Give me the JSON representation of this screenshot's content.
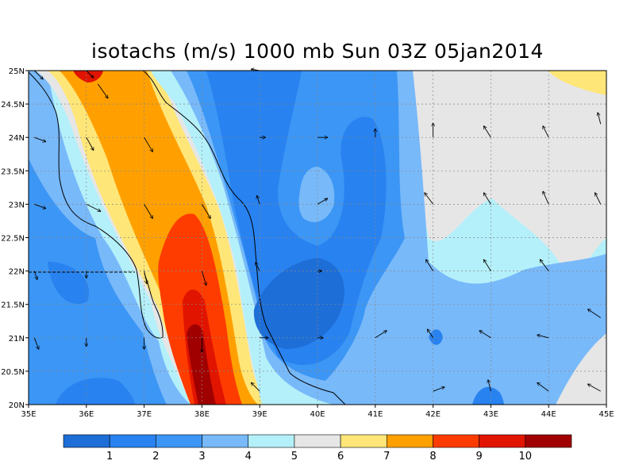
{
  "title": "isotachs (m/s) 1000 mb Sun 03Z 05jan2014",
  "map": {
    "lon_range": [
      35,
      45
    ],
    "lat_range": [
      20,
      25
    ],
    "x_ticks": [
      "35E",
      "36E",
      "37E",
      "38E",
      "39E",
      "40E",
      "41E",
      "42E",
      "43E",
      "44E",
      "45E"
    ],
    "y_ticks": [
      "20N",
      "20.5N",
      "21N",
      "21.5N",
      "22N",
      "22.5N",
      "23N",
      "23.5N",
      "24N",
      "24.5N",
      "25N"
    ],
    "grid": true
  },
  "colorbar": {
    "levels": [
      "1",
      "2",
      "3",
      "4",
      "5",
      "6",
      "7",
      "8",
      "9",
      "10"
    ],
    "colors": [
      "#1e6ed7",
      "#2882f0",
      "#3c96f5",
      "#78b9fa",
      "#b4f0fa",
      "#e6e6e6",
      "#ffe678",
      "#ffa000",
      "#ff3c00",
      "#e11400",
      "#a00000"
    ]
  },
  "chart_data": {
    "type": "heatmap",
    "title": "isotachs (m/s) 1000 mb Sun 03Z 05jan2014",
    "xlabel": "",
    "ylabel": "",
    "xlim": [
      35,
      45
    ],
    "ylim": [
      20,
      25
    ],
    "x_ticks": [
      "35E",
      "36E",
      "37E",
      "38E",
      "39E",
      "40E",
      "41E",
      "42E",
      "43E",
      "44E",
      "45E"
    ],
    "y_ticks": [
      "20N",
      "20.5N",
      "21N",
      "21.5N",
      "22N",
      "22.5N",
      "23N",
      "23.5N",
      "24N",
      "24.5N",
      "25N"
    ],
    "contour_levels": [
      1,
      2,
      3,
      4,
      5,
      6,
      7,
      8,
      9,
      10
    ],
    "units": "m/s",
    "wind_arrows": [
      {
        "lon": 35.1,
        "lat": 25.0,
        "u": 0.6,
        "v": -0.6
      },
      {
        "lon": 35.1,
        "lat": 24.0,
        "u": 0.8,
        "v": -0.3
      },
      {
        "lon": 35.1,
        "lat": 23.0,
        "u": 0.8,
        "v": -0.3
      },
      {
        "lon": 35.1,
        "lat": 22.0,
        "u": 0.2,
        "v": -0.6
      },
      {
        "lon": 35.1,
        "lat": 21.0,
        "u": 0.3,
        "v": -0.8
      },
      {
        "lon": 36.0,
        "lat": 25.0,
        "u": 0.5,
        "v": -0.5
      },
      {
        "lon": 36.0,
        "lat": 24.0,
        "u": 0.5,
        "v": -0.9
      },
      {
        "lon": 36.0,
        "lat": 23.0,
        "u": 1.0,
        "v": -0.5
      },
      {
        "lon": 36.0,
        "lat": 22.0,
        "u": 0.0,
        "v": -0.5
      },
      {
        "lon": 36.0,
        "lat": 21.0,
        "u": 0.0,
        "v": -0.6
      },
      {
        "lon": 36.2,
        "lat": 24.8,
        "u": 0.7,
        "v": -1.0
      },
      {
        "lon": 37.0,
        "lat": 24.0,
        "u": 0.6,
        "v": -1.0
      },
      {
        "lon": 37.0,
        "lat": 23.0,
        "u": 0.6,
        "v": -1.0
      },
      {
        "lon": 37.0,
        "lat": 22.0,
        "u": 0.2,
        "v": -0.9
      },
      {
        "lon": 37.0,
        "lat": 21.0,
        "u": 0.0,
        "v": -0.8
      },
      {
        "lon": 38.0,
        "lat": 23.0,
        "u": 0.6,
        "v": -1.0
      },
      {
        "lon": 38.0,
        "lat": 22.0,
        "u": 0.3,
        "v": -1.0
      },
      {
        "lon": 38.0,
        "lat": 21.0,
        "u": 0.0,
        "v": -1.0
      },
      {
        "lon": 39.0,
        "lat": 25.0,
        "u": -0.6,
        "v": 0.1
      },
      {
        "lon": 39.0,
        "lat": 24.0,
        "u": 0.4,
        "v": 0.0
      },
      {
        "lon": 39.0,
        "lat": 23.0,
        "u": -0.2,
        "v": 0.6
      },
      {
        "lon": 39.0,
        "lat": 22.0,
        "u": -0.3,
        "v": 0.6
      },
      {
        "lon": 39.0,
        "lat": 21.0,
        "u": 0.6,
        "v": 0.0
      },
      {
        "lon": 39.0,
        "lat": 20.2,
        "u": -0.6,
        "v": 0.6
      },
      {
        "lon": 40.0,
        "lat": 24.0,
        "u": 0.7,
        "v": 0.0
      },
      {
        "lon": 40.0,
        "lat": 23.0,
        "u": 0.7,
        "v": 0.4
      },
      {
        "lon": 40.0,
        "lat": 22.0,
        "u": 0.3,
        "v": 0.0
      },
      {
        "lon": 40.0,
        "lat": 21.0,
        "u": 0.4,
        "v": 0.0
      },
      {
        "lon": 41.0,
        "lat": 24.0,
        "u": 0.0,
        "v": 0.6
      },
      {
        "lon": 41.0,
        "lat": 21.0,
        "u": 0.8,
        "v": 0.5
      },
      {
        "lon": 42.0,
        "lat": 24.0,
        "u": 0.0,
        "v": 1.0
      },
      {
        "lon": 42.0,
        "lat": 23.0,
        "u": -0.6,
        "v": 0.8
      },
      {
        "lon": 42.0,
        "lat": 22.0,
        "u": -0.5,
        "v": 0.8
      },
      {
        "lon": 42.0,
        "lat": 21.0,
        "u": -0.4,
        "v": 0.6
      },
      {
        "lon": 42.0,
        "lat": 20.2,
        "u": 0.8,
        "v": 0.3
      },
      {
        "lon": 43.0,
        "lat": 24.0,
        "u": -0.5,
        "v": 0.8
      },
      {
        "lon": 43.0,
        "lat": 23.0,
        "u": -0.5,
        "v": 0.8
      },
      {
        "lon": 43.0,
        "lat": 22.0,
        "u": -0.5,
        "v": 0.8
      },
      {
        "lon": 43.0,
        "lat": 21.0,
        "u": -0.8,
        "v": 0.5
      },
      {
        "lon": 43.0,
        "lat": 20.2,
        "u": -0.2,
        "v": 0.8
      },
      {
        "lon": 44.0,
        "lat": 24.0,
        "u": -0.4,
        "v": 0.8
      },
      {
        "lon": 44.0,
        "lat": 23.0,
        "u": -0.4,
        "v": 0.9
      },
      {
        "lon": 44.0,
        "lat": 22.0,
        "u": -0.6,
        "v": 0.8
      },
      {
        "lon": 44.0,
        "lat": 21.0,
        "u": -0.8,
        "v": 0.2
      },
      {
        "lon": 44.0,
        "lat": 20.2,
        "u": -0.8,
        "v": 0.6
      },
      {
        "lon": 44.9,
        "lat": 24.2,
        "u": -0.2,
        "v": 0.8
      },
      {
        "lon": 44.9,
        "lat": 23.0,
        "u": -0.4,
        "v": 0.8
      },
      {
        "lon": 44.9,
        "lat": 21.3,
        "u": -0.9,
        "v": 0.6
      },
      {
        "lon": 44.9,
        "lat": 20.2,
        "u": -0.9,
        "v": 0.5
      }
    ]
  }
}
